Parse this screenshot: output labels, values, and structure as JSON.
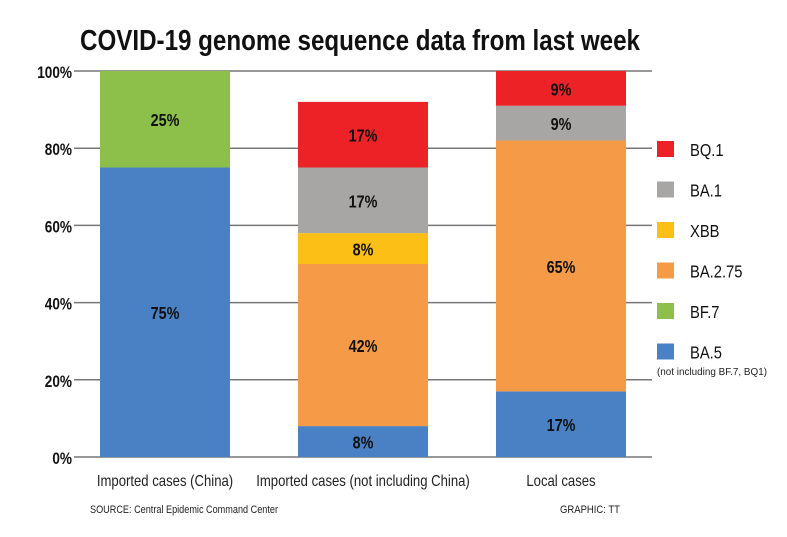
{
  "chart_data": {
    "type": "bar",
    "stacked": true,
    "title": "COVID-19 genome sequence data from last week",
    "xlabel": "",
    "ylabel": "",
    "ylim": [
      0,
      100
    ],
    "yticks": [
      "0%",
      "20%",
      "40%",
      "60%",
      "80%",
      "100%"
    ],
    "grid": true,
    "legend_placement": "right",
    "categories": [
      "Imported cases (China)",
      "Imported cases (not including China)",
      "Local cases"
    ],
    "series": [
      {
        "name": "BA.5",
        "color": "#4a80c4",
        "values": [
          75,
          8,
          17
        ]
      },
      {
        "name": "BA.2.75",
        "color": "#f59a47",
        "values": [
          0,
          42,
          65
        ]
      },
      {
        "name": "BF.7",
        "color": "#8dc04b",
        "values": [
          25,
          0,
          0
        ]
      },
      {
        "name": "XBB",
        "color": "#fcbf15",
        "values": [
          0,
          8,
          0
        ]
      },
      {
        "name": "BA.1",
        "color": "#a8a6a4",
        "values": [
          0,
          17,
          9
        ]
      },
      {
        "name": "BQ.1",
        "color": "#ed2227",
        "values": [
          0,
          17,
          9
        ]
      }
    ],
    "stack_order": [
      [
        "BA.5",
        "BF.7"
      ],
      [
        "BA.5",
        "BA.2.75",
        "XBB",
        "BA.1",
        "BQ.1",
        "BF.7"
      ],
      [
        "BA.5",
        "BA.2.75",
        "BA.1",
        "BQ.1"
      ]
    ],
    "legend": [
      "BQ.1",
      "BA.1",
      "XBB",
      "BA.2.75",
      "BF.7",
      "BA.5"
    ],
    "legend_note": "(not including BF.7, BQ1)",
    "source": "SOURCE: Central Epidemic Command Center",
    "credit": "GRAPHIC: TT"
  }
}
